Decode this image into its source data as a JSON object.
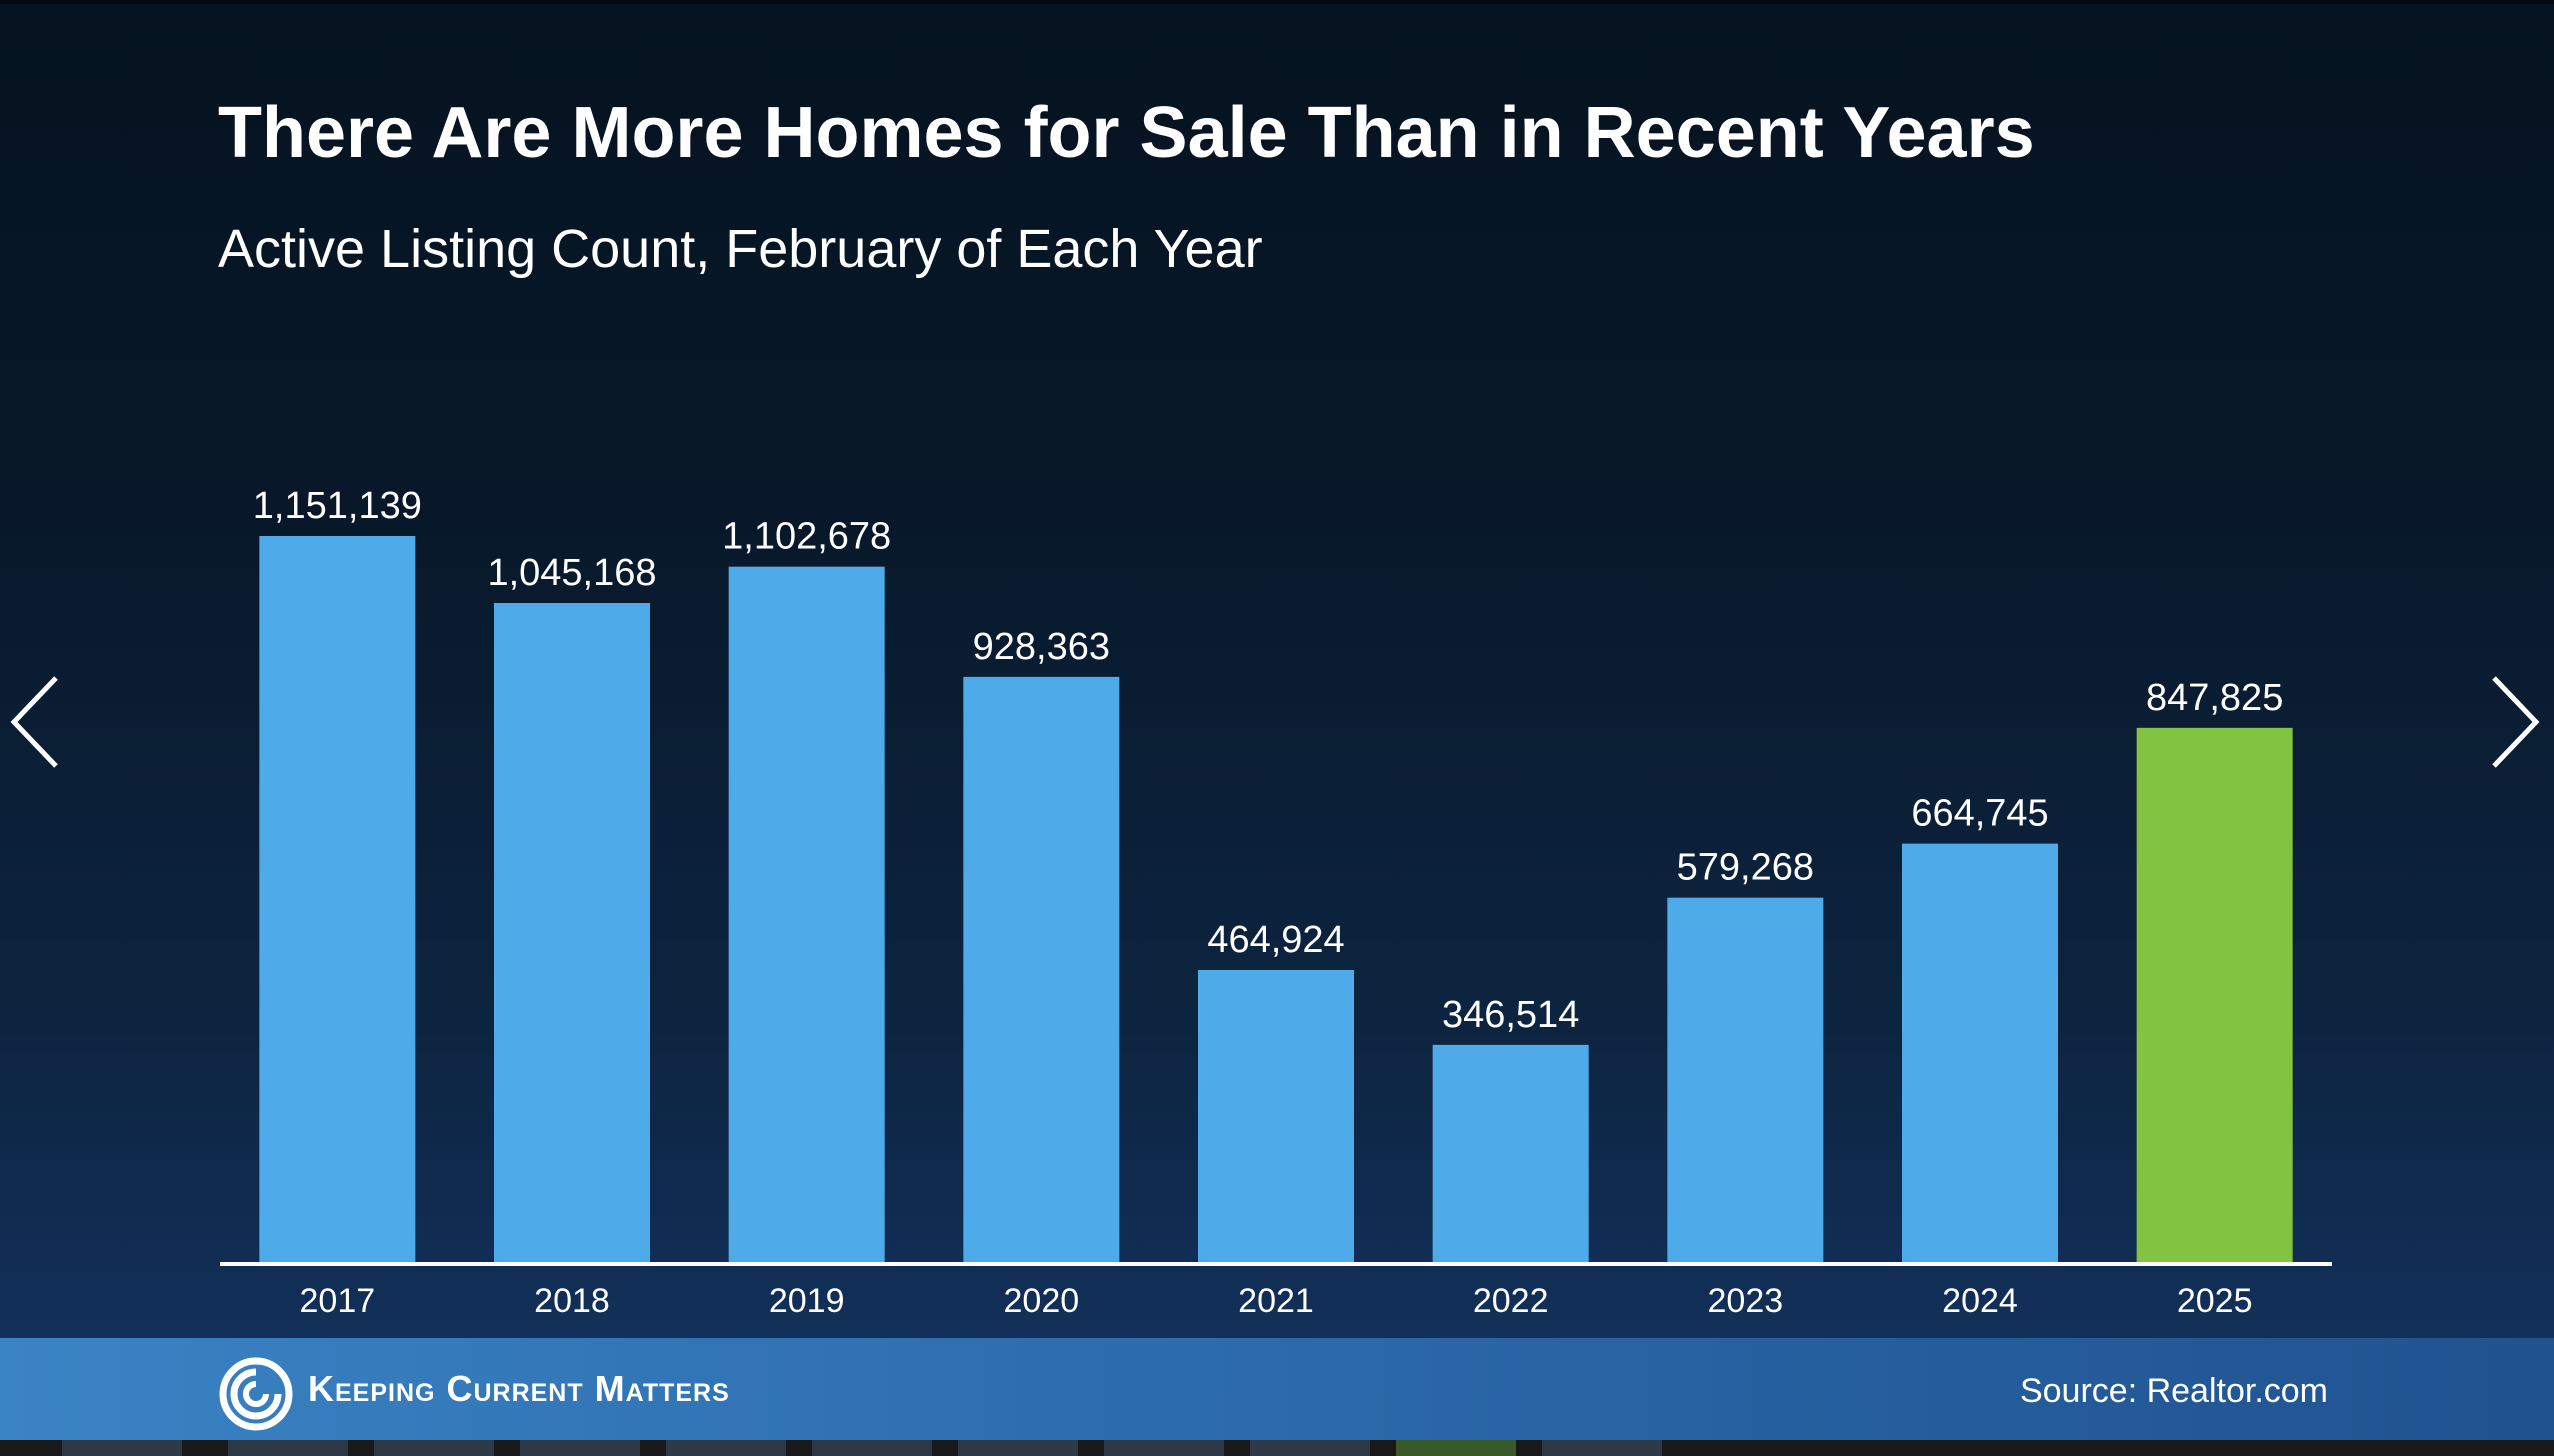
{
  "title": "There Are More Homes for Sale Than in Recent Years",
  "subtitle": "Active Listing Count, February of Each Year",
  "brand": "Keeping Current Matters",
  "source": "Source: Realtor.com",
  "icons": {
    "prev": "chevron-left-icon",
    "next": "chevron-right-icon",
    "logo": "swirl-logo-icon"
  },
  "colors": {
    "bar": "#4eaae8",
    "highlight_bar": "#82c341",
    "axis": "#ffffff",
    "label": "#ffffff",
    "tick": "#ffffff"
  },
  "chart_data": {
    "type": "bar",
    "categories": [
      "2017",
      "2018",
      "2019",
      "2020",
      "2021",
      "2022",
      "2023",
      "2024",
      "2025"
    ],
    "values": [
      1151139,
      1045168,
      1102678,
      928363,
      464924,
      346514,
      579268,
      664745,
      847825
    ],
    "value_labels": [
      "1,151,139",
      "1,045,168",
      "1,102,678",
      "928,363",
      "464,924",
      "346,514",
      "579,268",
      "664,745",
      "847,825"
    ],
    "highlight_index": 8,
    "ylim": [
      0,
      1151139
    ],
    "grid": false,
    "legend": "none",
    "xlabel": "",
    "ylabel": ""
  }
}
